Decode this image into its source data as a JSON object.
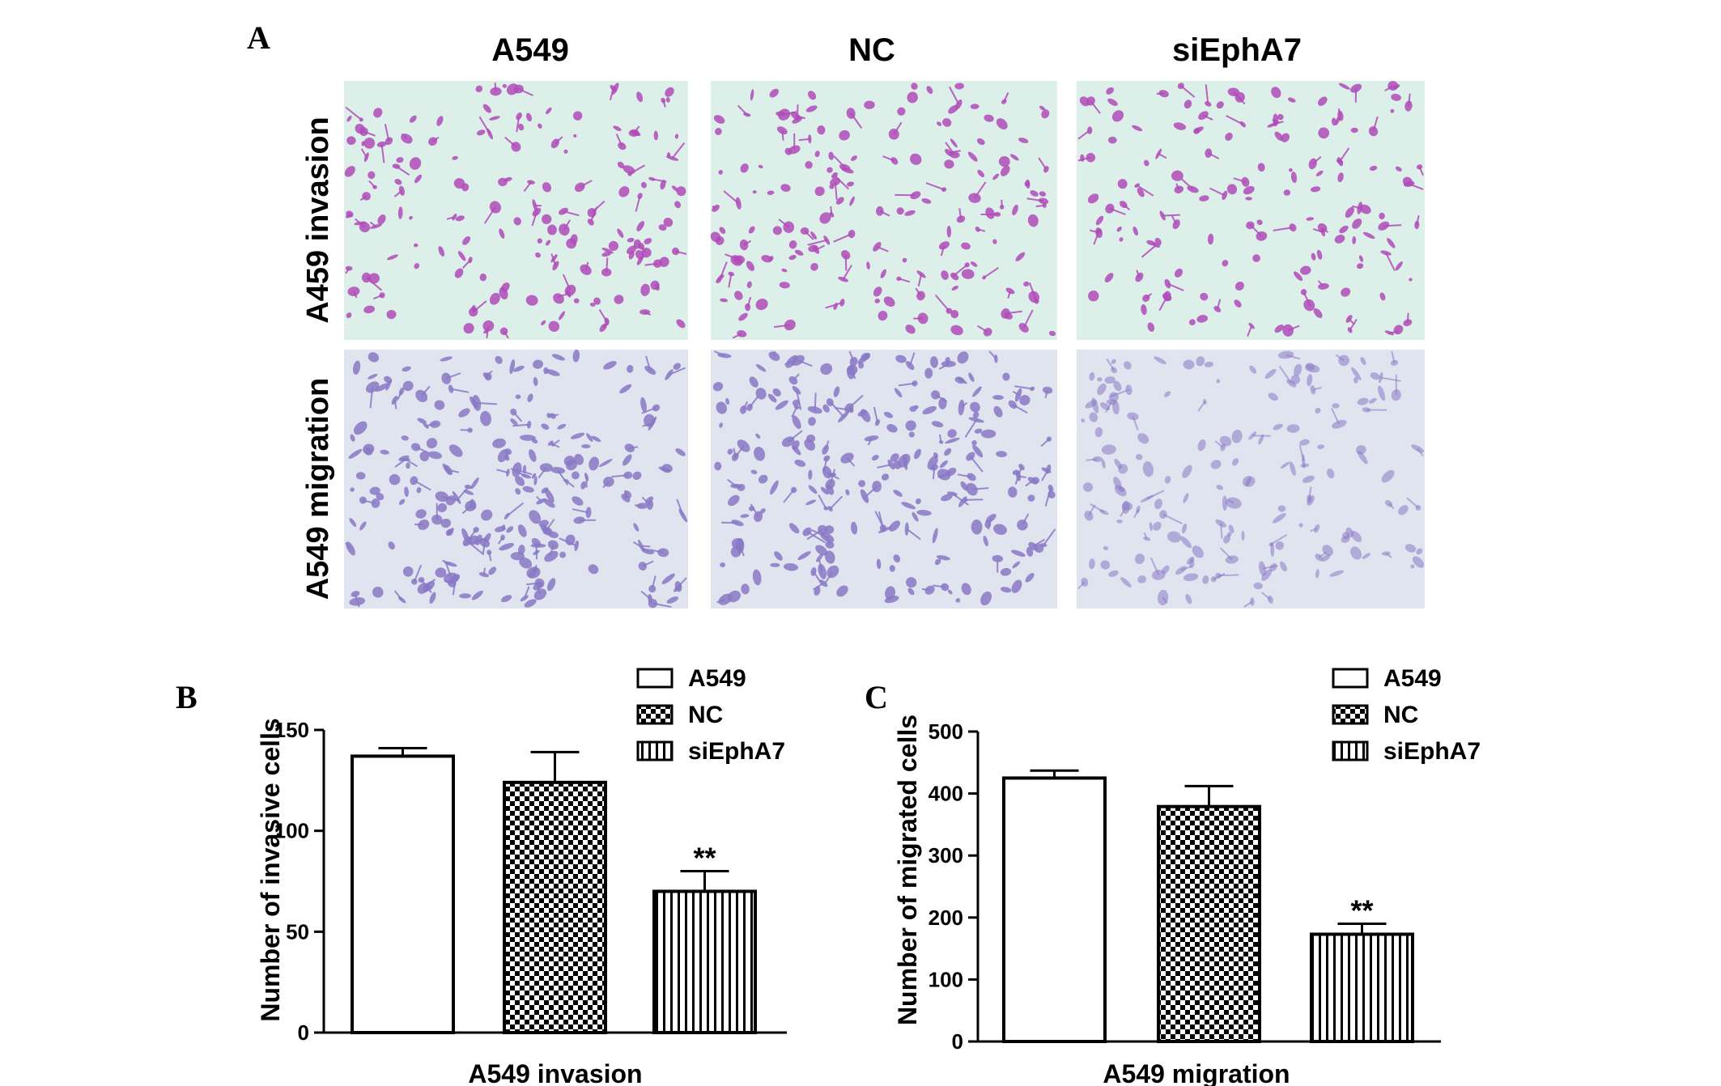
{
  "panel_a": {
    "letter": "A",
    "column_labels": [
      "A549",
      "NC",
      "siEphA7"
    ],
    "row_labels": [
      "A459 invasion",
      "A549 migration"
    ],
    "invasion_bg": "#dcefe9",
    "invasion_cell": "#b04ab8",
    "migration_bg": "#dfe4ef",
    "migration_cell": "#8a78c4"
  },
  "chart_data": [
    {
      "type": "bar",
      "panel_letter": "B",
      "categories": [
        "A549",
        "NC",
        "siEphA7"
      ],
      "values": [
        137,
        124,
        70
      ],
      "errors": [
        4,
        15,
        10
      ],
      "significance": [
        "",
        "",
        "**"
      ],
      "patterns": [
        "open",
        "checker",
        "vertical-lines"
      ],
      "legend": [
        "A549",
        "NC",
        "siEphA7"
      ],
      "legend_position": "top-right",
      "xlabel": "A549 invasion",
      "ylabel": "Number of invasive cells",
      "ylim": [
        0,
        150
      ],
      "yticks": [
        0,
        50,
        100,
        150
      ],
      "grid": false
    },
    {
      "type": "bar",
      "panel_letter": "C",
      "categories": [
        "A549",
        "NC",
        "siEphA7"
      ],
      "values": [
        425,
        379,
        173
      ],
      "errors": [
        12,
        33,
        17
      ],
      "significance": [
        "",
        "",
        "**"
      ],
      "patterns": [
        "open",
        "checker",
        "vertical-lines"
      ],
      "legend": [
        "A549",
        "NC",
        "siEphA7"
      ],
      "legend_position": "top-right",
      "xlabel": "A549 migration",
      "ylabel": "Number of migrated cells",
      "ylim": [
        0,
        500
      ],
      "yticks": [
        0,
        100,
        200,
        300,
        400,
        500
      ],
      "grid": false
    }
  ]
}
